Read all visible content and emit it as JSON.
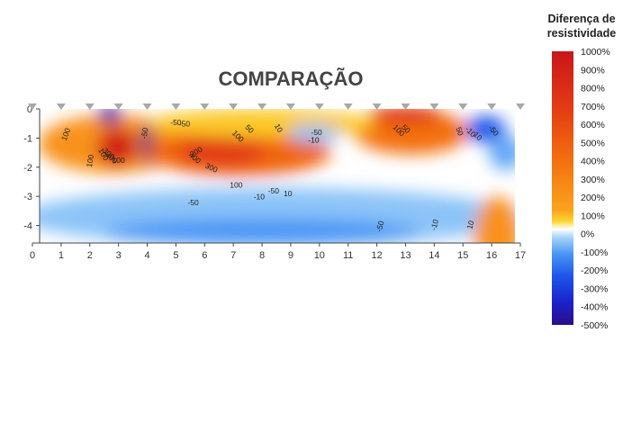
{
  "chart_data": {
    "type": "heatmap",
    "title": "COMPARAÇÃO",
    "xlabel": "",
    "ylabel": "",
    "xlim": [
      0,
      17
    ],
    "ylim": [
      -4.6,
      0
    ],
    "x_ticks": [
      "0",
      "1",
      "2",
      "3",
      "4",
      "5",
      "6",
      "7",
      "8",
      "9",
      "10",
      "11",
      "12",
      "13",
      "14",
      "15",
      "16",
      "17"
    ],
    "y_ticks": [
      "0",
      "-1",
      "-2",
      "-3",
      "-4"
    ],
    "electrodes_x": [
      1,
      2,
      3,
      4,
      5,
      6,
      7,
      8,
      9,
      10,
      11,
      12,
      13,
      14,
      15,
      16
    ],
    "colorbar": {
      "title_line1": "Diferença de",
      "title_line2": "resistividade",
      "ticks": [
        "1000%",
        "900%",
        "800%",
        "700%",
        "600%",
        "500%",
        "400%",
        "300%",
        "200%",
        "100%",
        "0%",
        "-100%",
        "-200%",
        "-300%",
        "-400%",
        "-500%"
      ],
      "range": [
        -500,
        1000
      ]
    },
    "regions": [
      {
        "value": -50,
        "x": 8.3,
        "y": -3.7,
        "rx": 8.8,
        "ry": 1.0
      },
      {
        "value": -100,
        "x": 8.0,
        "y": -4.2,
        "rx": 5.5,
        "ry": 0.45
      },
      {
        "value": 150,
        "x": 2.8,
        "y": -1.2,
        "rx": 2.6,
        "ry": 1.0
      },
      {
        "value": 850,
        "x": 2.95,
        "y": -1.3,
        "rx": 0.7,
        "ry": 0.65
      },
      {
        "value": -450,
        "x": 2.7,
        "y": -0.2,
        "rx": 0.4,
        "ry": 0.3
      },
      {
        "value": -500,
        "x": 4.0,
        "y": -1.2,
        "rx": 0.2,
        "ry": 0.7
      },
      {
        "value": 300,
        "x": 7.2,
        "y": -1.5,
        "rx": 3.2,
        "ry": 0.8
      },
      {
        "value": 500,
        "x": 6.6,
        "y": -1.4,
        "rx": 1.5,
        "ry": 0.55
      },
      {
        "value": 250,
        "x": 13.2,
        "y": -0.8,
        "rx": 2.0,
        "ry": 0.75
      },
      {
        "value": 550,
        "x": 13.0,
        "y": -0.2,
        "rx": 1.3,
        "ry": 0.3
      },
      {
        "value": 60,
        "x": 8.0,
        "y": -0.5,
        "rx": 4.0,
        "ry": 0.5
      },
      {
        "value": -50,
        "x": 9.8,
        "y": -0.85,
        "rx": 0.9,
        "ry": 0.3
      },
      {
        "value": -200,
        "x": 15.8,
        "y": -0.7,
        "rx": 0.7,
        "ry": 0.45
      },
      {
        "value": -80,
        "x": 16.5,
        "y": -1.5,
        "rx": 0.6,
        "ry": 0.6
      },
      {
        "value": 150,
        "x": 16.2,
        "y": -4.3,
        "rx": 0.8,
        "ry": 1.3
      }
    ],
    "contour_labels": [
      {
        "text": "100",
        "x": 1.25,
        "y": -0.9,
        "angle": -70
      },
      {
        "text": "100",
        "x": 2.1,
        "y": -1.8,
        "angle": -80
      },
      {
        "text": "100",
        "x": 2.4,
        "y": -1.6,
        "angle": 60
      },
      {
        "text": "300",
        "x": 2.6,
        "y": -1.6,
        "angle": 40
      },
      {
        "text": "400",
        "x": 2.7,
        "y": -1.75,
        "angle": 40
      },
      {
        "text": "100",
        "x": 3.0,
        "y": -1.85,
        "angle": 0
      },
      {
        "text": "-50",
        "x": 4.0,
        "y": -0.85,
        "angle": -80
      },
      {
        "text": "-50",
        "x": 5.0,
        "y": -0.55,
        "angle": 0
      },
      {
        "text": "-50",
        "x": 5.3,
        "y": -0.6,
        "angle": 0
      },
      {
        "text": "200",
        "x": 5.75,
        "y": -1.55,
        "angle": -30
      },
      {
        "text": "400",
        "x": 5.6,
        "y": -1.75,
        "angle": 40
      },
      {
        "text": "300",
        "x": 6.2,
        "y": -2.1,
        "angle": 25
      },
      {
        "text": "100",
        "x": 7.1,
        "y": -1.0,
        "angle": 45
      },
      {
        "text": "50",
        "x": 7.5,
        "y": -0.75,
        "angle": 45
      },
      {
        "text": "10",
        "x": 8.5,
        "y": -0.7,
        "angle": 60
      },
      {
        "text": "-50",
        "x": 9.9,
        "y": -0.9,
        "angle": 0
      },
      {
        "text": "-10",
        "x": 9.8,
        "y": -1.15,
        "angle": 0
      },
      {
        "text": "100",
        "x": 7.1,
        "y": -2.7,
        "angle": 0
      },
      {
        "text": "-50",
        "x": 8.4,
        "y": -2.9,
        "angle": 0
      },
      {
        "text": "-10",
        "x": 7.9,
        "y": -3.1,
        "angle": 0
      },
      {
        "text": "10",
        "x": 8.9,
        "y": -3.0,
        "angle": 0
      },
      {
        "text": "-50",
        "x": 5.6,
        "y": -3.3,
        "angle": 0
      },
      {
        "text": "100",
        "x": 12.7,
        "y": -0.8,
        "angle": 45
      },
      {
        "text": "50",
        "x": 12.95,
        "y": -0.75,
        "angle": 45
      },
      {
        "text": "50",
        "x": 14.8,
        "y": -0.8,
        "angle": 70
      },
      {
        "text": "-10",
        "x": 15.2,
        "y": -0.85,
        "angle": 45
      },
      {
        "text": "10",
        "x": 15.45,
        "y": -1.0,
        "angle": 45
      },
      {
        "text": "-50",
        "x": 16.0,
        "y": -0.8,
        "angle": 50
      },
      {
        "text": "-50",
        "x": 12.2,
        "y": -4.05,
        "angle": -75
      },
      {
        "text": "-10",
        "x": 14.1,
        "y": -4.0,
        "angle": -75
      },
      {
        "text": "10",
        "x": 15.35,
        "y": -4.0,
        "angle": -75
      }
    ]
  }
}
